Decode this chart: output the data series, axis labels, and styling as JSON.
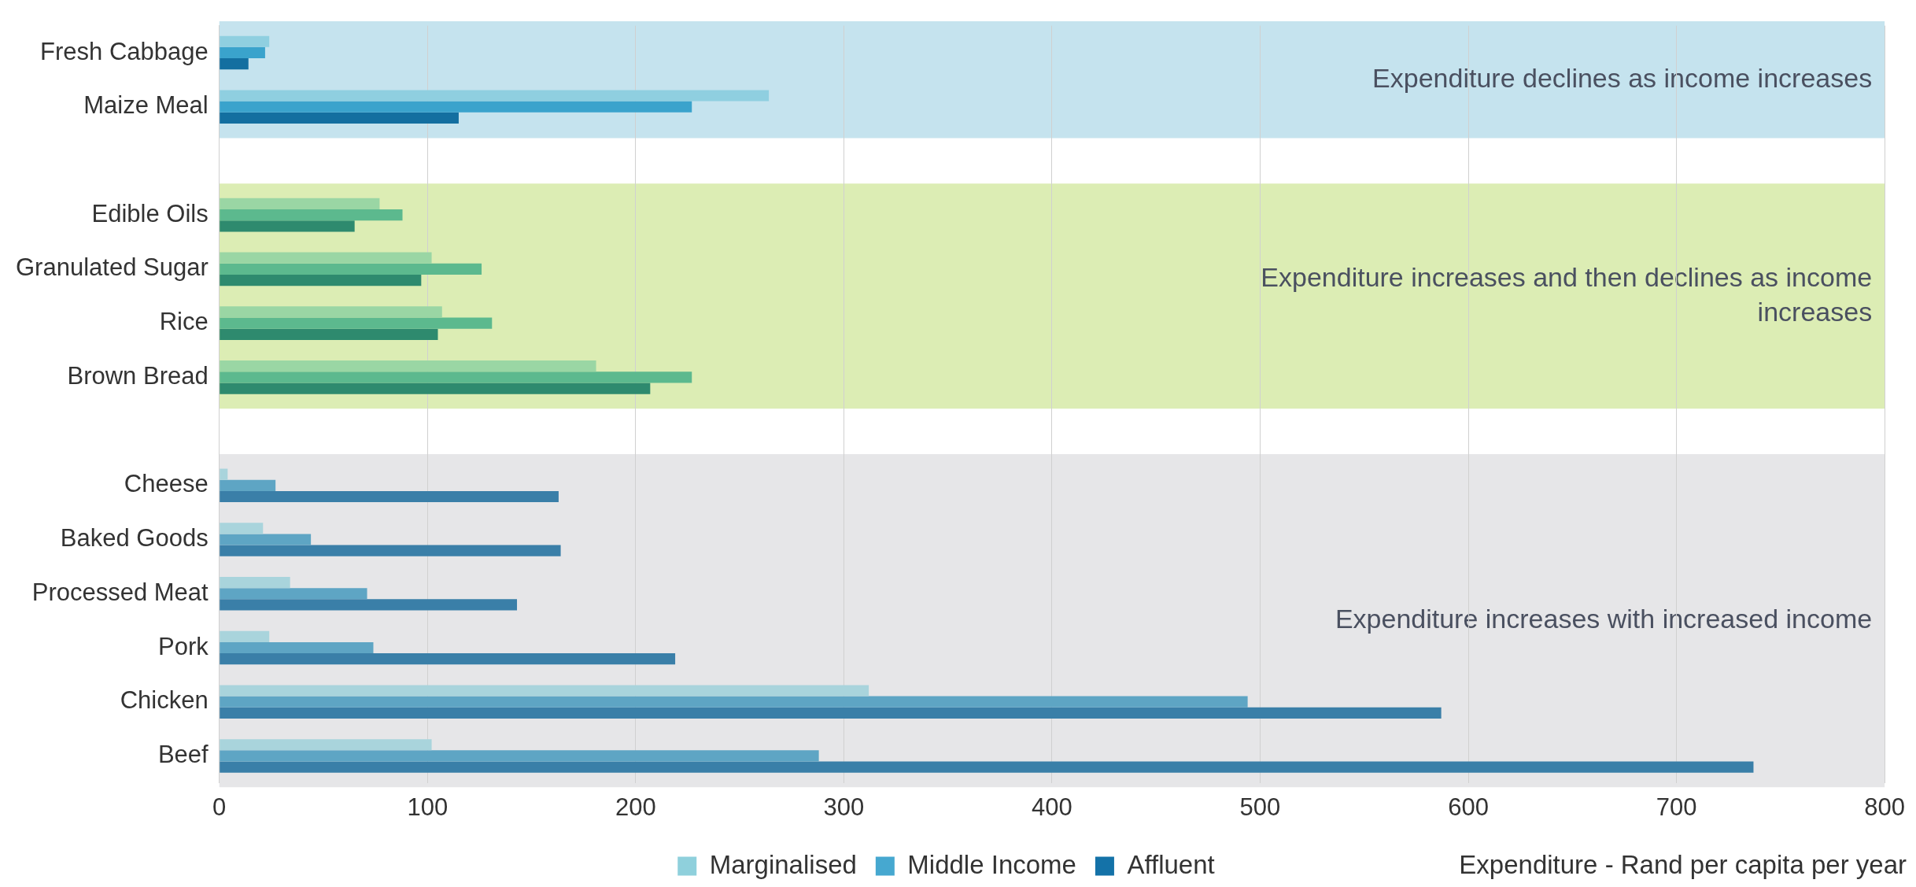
{
  "chart_data": {
    "type": "bar",
    "orientation": "horizontal",
    "xlabel": "Expenditure - Rand per capita per year",
    "categories": [
      "Fresh Cabbage",
      "Maize Meal",
      null,
      "Edible Oils",
      "Granulated Sugar",
      "Rice",
      "Brown Bread",
      null,
      "Cheese",
      "Baked Goods",
      "Processed Meat",
      "Pork",
      "Chicken",
      "Beef"
    ],
    "series": [
      {
        "name": "Marginalised",
        "color": "#8fd0dc",
        "values": [
          24,
          264,
          null,
          77,
          102,
          107,
          181,
          null,
          4,
          21,
          34,
          24,
          312,
          102
        ],
        "colors": [
          "#8fcfe0",
          "#8fcfe0",
          "#8fcfe0",
          "#9ad6a4",
          "#9ad6a4",
          "#9ad6a4",
          "#9ad6a4",
          "#a9d4dc",
          "#a9d4dc",
          "#a9d4dc",
          "#a9d4dc",
          "#a9d4dc",
          "#a9d4dc",
          "#a9d4dc"
        ]
      },
      {
        "name": "Middle Income",
        "color": "#46a8d0",
        "values": [
          22,
          227,
          null,
          88,
          126,
          131,
          227,
          null,
          27,
          44,
          71,
          74,
          494,
          288
        ],
        "colors": [
          "#3aa3cc",
          "#3aa3cc",
          "#3aa3cc",
          "#5cb98e",
          "#5cb98e",
          "#5cb98e",
          "#5cb98e",
          "#5ea5c4",
          "#5ea5c4",
          "#5ea5c4",
          "#5ea5c4",
          "#5ea5c4",
          "#5ea5c4",
          "#5ea5c4"
        ]
      },
      {
        "name": "Affluent",
        "color": "#1472a8",
        "values": [
          14,
          115,
          null,
          65,
          97,
          105,
          207,
          null,
          163,
          164,
          143,
          219,
          587,
          737
        ],
        "colors": [
          "#136fa0",
          "#136fa0",
          "#136fa0",
          "#2e8a6e",
          "#2e8a6e",
          "#2e8a6e",
          "#2e8a6e",
          "#3a7fa8",
          "#3a7fa8",
          "#3a7fa8",
          "#3a7fa8",
          "#3a7fa8",
          "#3a7fa8",
          "#3a7fa8"
        ]
      }
    ],
    "xlim": [
      0,
      800
    ],
    "xticks": [
      0,
      100,
      200,
      300,
      400,
      500,
      600,
      700,
      800
    ],
    "grid": "x",
    "legend": "bottom",
    "bands": [
      {
        "axis": "y",
        "from": "Fresh Cabbage",
        "to": "Maize Meal",
        "label": "Expenditure declines as income increases",
        "color": "#c5e3ee"
      },
      {
        "axis": "y",
        "from": "Edible Oils",
        "to": "Brown Bread",
        "label": "Expenditure increases and then declines as income increases",
        "color": "#dcedb4"
      },
      {
        "axis": "y",
        "from": "Cheese",
        "to": "Beef",
        "label": "Expenditure increases with increased income",
        "color": "#e6e6e8"
      }
    ]
  }
}
